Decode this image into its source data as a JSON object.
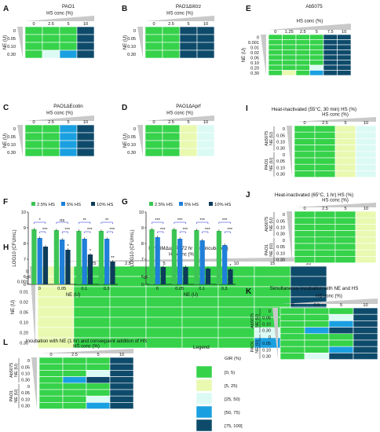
{
  "colors": {
    "0-5": "#35d24a",
    "5-25": "#e9f9b0",
    "25-50": "#dcfaf4",
    "50-75": "#1aa0e0",
    "75-100": "#0e4b6b",
    "bar_2_5": "#3cc455",
    "bar_5": "#1f7fd9",
    "bar_10": "#0d3b5a",
    "sig": "#1a23d8"
  },
  "labels": {
    "hs_conc": "HS conc (%)",
    "ne_u": "NE (U)",
    "log_cfu": "LOG10 (CFU/mL)",
    "legend_title": "Legend",
    "legend_gir": "GIR (%)"
  },
  "legend": {
    "items": [
      {
        "key": "0-5",
        "label": "[0, 5)"
      },
      {
        "key": "5-25",
        "label": "[5, 25)"
      },
      {
        "key": "25-50",
        "label": "[25, 50)"
      },
      {
        "key": "50-75",
        "label": "[50, 75)"
      },
      {
        "key": "75-100",
        "label": "[75, 100]"
      }
    ]
  },
  "panels": [
    {
      "id": "A",
      "title": "PAO1",
      "cols": [
        "0",
        "2.5",
        "5",
        "10"
      ],
      "rows": [
        "0",
        "0.05",
        "0.10",
        "0.30"
      ],
      "grid": [
        [
          "0-5",
          "0-5",
          "0-5",
          "75-100"
        ],
        [
          "0-5",
          "0-5",
          "0-5",
          "75-100"
        ],
        [
          "0-5",
          "0-5",
          "0-5",
          "75-100"
        ],
        [
          "0-5",
          "25-50",
          "50-75",
          "75-100"
        ]
      ]
    },
    {
      "id": "B",
      "title": "PAO1ΔWzz",
      "cols": [
        "0",
        "2.5",
        "5",
        "10"
      ],
      "rows": [
        "0",
        "0.05",
        "0.10",
        "0.30"
      ],
      "grid": [
        [
          "0-5",
          "0-5",
          "75-100",
          "75-100"
        ],
        [
          "0-5",
          "0-5",
          "75-100",
          "75-100"
        ],
        [
          "0-5",
          "0-5",
          "75-100",
          "75-100"
        ],
        [
          "0-5",
          "0-5",
          "75-100",
          "75-100"
        ]
      ]
    },
    {
      "id": "C",
      "title": "PAO1ΔEcotin",
      "cols": [
        "0",
        "2.5",
        "5",
        "10"
      ],
      "rows": [
        "0",
        "0.05",
        "0.10",
        "0.30"
      ],
      "grid": [
        [
          "0-5",
          "0-5",
          "50-75",
          "75-100"
        ],
        [
          "0-5",
          "0-5",
          "50-75",
          "75-100"
        ],
        [
          "0-5",
          "0-5",
          "50-75",
          "75-100"
        ],
        [
          "0-5",
          "0-5",
          "50-75",
          "75-100"
        ]
      ]
    },
    {
      "id": "D",
      "title": "PAO1ΔAprf",
      "cols": [
        "0",
        "2.5",
        "5",
        "10"
      ],
      "rows": [
        "0",
        "0.05",
        "0.10",
        "0.30"
      ],
      "grid": [
        [
          "0-5",
          "0-5",
          "5-25",
          "25-50"
        ],
        [
          "0-5",
          "0-5",
          "5-25",
          "25-50"
        ],
        [
          "0-5",
          "0-5",
          "5-25",
          "25-50"
        ],
        [
          "0-5",
          "0-5",
          "5-25",
          "25-50"
        ]
      ]
    },
    {
      "id": "E",
      "title": "Ab5075",
      "cols": [
        "0",
        "1.25",
        "2.5",
        "5",
        "7.5",
        "10"
      ],
      "rows": [
        "0",
        "0.001",
        "0.01",
        "0.02",
        "0.05",
        "0.10",
        "0.20",
        "0.30"
      ],
      "grid": [
        [
          "0-5",
          "0-5",
          "0-5",
          "0-5",
          "75-100",
          "75-100"
        ],
        [
          "0-5",
          "0-5",
          "0-5",
          "0-5",
          "75-100",
          "75-100"
        ],
        [
          "0-5",
          "0-5",
          "0-5",
          "0-5",
          "75-100",
          "75-100"
        ],
        [
          "0-5",
          "0-5",
          "0-5",
          "0-5",
          "75-100",
          "75-100"
        ],
        [
          "0-5",
          "0-5",
          "0-5",
          "0-5",
          "75-100",
          "75-100"
        ],
        [
          "0-5",
          "0-5",
          "0-5",
          "0-5",
          "75-100",
          "75-100"
        ],
        [
          "0-5",
          "0-5",
          "0-5",
          "25-50",
          "75-100",
          "75-100"
        ],
        [
          "0-5",
          "5-25",
          "0-5",
          "50-75",
          "75-100",
          "75-100"
        ]
      ]
    },
    {
      "id": "H",
      "title": "Bm16MΔujbR (72 hr post incubation)",
      "cols": [
        "0",
        "1.25",
        "2.5",
        "5",
        "7.5",
        "10",
        "15",
        "20"
      ],
      "rows": [
        "0",
        "0.001",
        "0.01",
        "0.02",
        "0.05",
        "0.10",
        "0.20",
        "0.30"
      ],
      "grid": [
        [
          "5-25",
          "0-5",
          "0-5",
          "0-5",
          "0-5",
          "0-5",
          "0-5",
          "75-100"
        ],
        [
          "5-25",
          "0-5",
          "0-5",
          "0-5",
          "0-5",
          "0-5",
          "0-5",
          "75-100"
        ],
        [
          "5-25",
          "0-5",
          "0-5",
          "0-5",
          "0-5",
          "0-5",
          "0-5",
          "75-100"
        ],
        [
          "5-25",
          "0-5",
          "0-5",
          "0-5",
          "0-5",
          "0-5",
          "0-5",
          "75-100"
        ],
        [
          "5-25",
          "0-5",
          "0-5",
          "0-5",
          "0-5",
          "0-5",
          "0-5",
          "75-100"
        ],
        [
          "5-25",
          "0-5",
          "0-5",
          "0-5",
          "0-5",
          "0-5",
          "0-5",
          "75-100"
        ],
        [
          "5-25",
          "0-5",
          "0-5",
          "0-5",
          "0-5",
          "0-5",
          "25-50",
          "75-100"
        ],
        [
          "5-25",
          "0-5",
          "0-5",
          "0-5",
          "0-5",
          "0-5",
          "50-75",
          "75-100"
        ]
      ]
    },
    {
      "id": "I",
      "title": "Heat-inactivated (55°C, 30 min) HS (%)",
      "cols": [
        "0",
        "2.5",
        "5",
        "10"
      ],
      "rows": [
        "0",
        "0.05",
        "0.10",
        "0.30",
        "0",
        "0.05",
        "0.10",
        "0.30"
      ],
      "groups": [
        "Ab5075",
        "PAO1"
      ],
      "grid": [
        [
          "0-5",
          "0-5",
          "5-25",
          "25-50"
        ],
        [
          "0-5",
          "0-5",
          "5-25",
          "25-50"
        ],
        [
          "0-5",
          "0-5",
          "5-25",
          "25-50"
        ],
        [
          "0-5",
          "0-5",
          "5-25",
          "25-50"
        ],
        [
          "0-5",
          "0-5",
          "5-25",
          "25-50"
        ],
        [
          "0-5",
          "0-5",
          "5-25",
          "25-50"
        ],
        [
          "0-5",
          "0-5",
          "5-25",
          "25-50"
        ],
        [
          "0-5",
          "0-5",
          "5-25",
          "25-50"
        ]
      ]
    },
    {
      "id": "J",
      "title": "Heat-inactivated (65°C, 1 hr) HS (%)",
      "cols": [
        "0",
        "2.5",
        "5",
        "10"
      ],
      "rows": [
        "0",
        "0.05",
        "0.10",
        "0.30",
        "0",
        "0.05",
        "0.10",
        "0.30"
      ],
      "groups": [
        "Ab5075",
        "PAO1"
      ],
      "grid": [
        [
          "0-5",
          "0-5",
          "0-5",
          "5-25"
        ],
        [
          "0-5",
          "0-5",
          "0-5",
          "5-25"
        ],
        [
          "0-5",
          "0-5",
          "0-5",
          "5-25"
        ],
        [
          "0-5",
          "0-5",
          "0-5",
          "5-25"
        ],
        [
          "0-5",
          "0-5",
          "0-5",
          "5-25"
        ],
        [
          "0-5",
          "0-5",
          "0-5",
          "5-25"
        ],
        [
          "0-5",
          "0-5",
          "0-5",
          "5-25"
        ],
        [
          "0-5",
          "0-5",
          "0-5",
          "5-25"
        ]
      ]
    },
    {
      "id": "K",
      "title": "Simultaneous incubation with NE and HS",
      "cols": [
        "0",
        "2.5",
        "5",
        "10"
      ],
      "rows": [
        "0",
        "0.05",
        "0.10",
        "0.30",
        "0",
        "0.05",
        "0.10",
        "0.30"
      ],
      "groups": [
        "Ab5075",
        "PAO1"
      ],
      "grid": [
        [
          "0-5",
          "0-5",
          "0-5",
          "75-100"
        ],
        [
          "0-5",
          "0-5",
          "25-50",
          "75-100"
        ],
        [
          "0-5",
          "0-5",
          "50-75",
          "75-100"
        ],
        [
          "0-5",
          "50-75",
          "75-100",
          "75-100"
        ],
        [
          "0-5",
          "0-5",
          "0-5",
          "75-100"
        ],
        [
          "0-5",
          "0-5",
          "0-5",
          "75-100"
        ],
        [
          "0-5",
          "0-5",
          "50-75",
          "75-100"
        ],
        [
          "0-5",
          "25-50",
          "75-100",
          "75-100"
        ]
      ]
    },
    {
      "id": "L",
      "title": "Incubation with NE (1 hr) and consequent addition of HS",
      "cols": [
        "0",
        "2.5",
        "5",
        "10"
      ],
      "rows": [
        "0",
        "0.05",
        "0.10",
        "0.30",
        "0",
        "0.05",
        "0.10",
        "0.30"
      ],
      "groups": [
        "Ab5075",
        "PAO1"
      ],
      "grid": [
        [
          "0-5",
          "0-5",
          "0-5",
          "75-100"
        ],
        [
          "0-5",
          "0-5",
          "0-5",
          "75-100"
        ],
        [
          "0-5",
          "0-5",
          "25-50",
          "75-100"
        ],
        [
          "0-5",
          "50-75",
          "75-100",
          "75-100"
        ],
        [
          "0-5",
          "0-5",
          "0-5",
          "75-100"
        ],
        [
          "0-5",
          "0-5",
          "0-5",
          "75-100"
        ],
        [
          "0-5",
          "0-5",
          "25-50",
          "75-100"
        ],
        [
          "0-5",
          "0-5",
          "50-75",
          "75-100"
        ]
      ]
    }
  ],
  "chart_data": [
    {
      "id": "F",
      "type": "bar",
      "categories": [
        "0",
        "0.05",
        "0.1",
        "0.3"
      ],
      "series": [
        {
          "name": "2.5% HS",
          "values": [
            8.9,
            8.85,
            8.8,
            8.8
          ]
        },
        {
          "name": "5% HS",
          "values": [
            8.35,
            8.25,
            8.3,
            8.3
          ]
        },
        {
          "name": "10% HS",
          "values": [
            7.8,
            7.6,
            7.3,
            6.85
          ]
        }
      ],
      "ylim": [
        0,
        10
      ],
      "yticks": [
        0,
        6,
        7,
        8,
        9,
        10
      ],
      "xlabel": "NE (U)",
      "ylabel": "LOG10 (CFU/mL)",
      "legend": "top",
      "star_labels": [
        "*",
        "*",
        "**"
      ],
      "brackets": [
        {
          "cat": 0,
          "top": "*",
          "bottom": "***"
        },
        {
          "cat": 1,
          "top": "ns",
          "bottom": "***"
        },
        {
          "cat": 2,
          "top": "**",
          "bottom": "***"
        },
        {
          "cat": 3,
          "top": "**",
          "bottom": "***"
        }
      ]
    },
    {
      "id": "G",
      "type": "bar",
      "categories": [
        "0",
        "0.05",
        "0.1",
        "0.3"
      ],
      "series": [
        {
          "name": "2.5% HS",
          "values": [
            8.9,
            8.9,
            8.85,
            8.8
          ]
        },
        {
          "name": "5% HS",
          "values": [
            8.4,
            8.3,
            8.2,
            7.9
          ]
        },
        {
          "name": "10% HS",
          "values": [
            6.5,
            6.5,
            6.4,
            6.35
          ]
        }
      ],
      "ylim": [
        0,
        10
      ],
      "yticks": [
        0,
        6,
        7,
        8,
        9,
        10
      ],
      "xlabel": "NE (U)",
      "ylabel": "LOG10 (CFU/mL)",
      "legend": "top",
      "star_labels": [
        "*"
      ],
      "brackets": [
        {
          "cat": 0,
          "top": "***",
          "bottom": "***"
        },
        {
          "cat": 1,
          "top": "***",
          "bottom": "***"
        },
        {
          "cat": 2,
          "top": "***",
          "bottom": "***"
        },
        {
          "cat": 3,
          "top": "***",
          "bottom": "***"
        }
      ]
    }
  ]
}
